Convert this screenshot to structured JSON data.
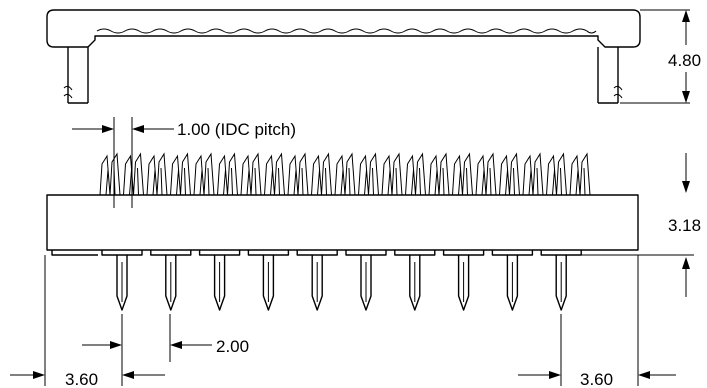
{
  "dimensions": {
    "cover_height": "4.80",
    "idc_pitch": "1.00  (IDC pitch)",
    "body_height": "3.18",
    "pin_pitch": "2.00",
    "edge_offset_left": "3.60",
    "edge_offset_right": "3.60"
  },
  "counts": {
    "idc_contacts": 21,
    "pins": 10
  },
  "colors": {
    "line": "#000000",
    "background": "#ffffff"
  }
}
